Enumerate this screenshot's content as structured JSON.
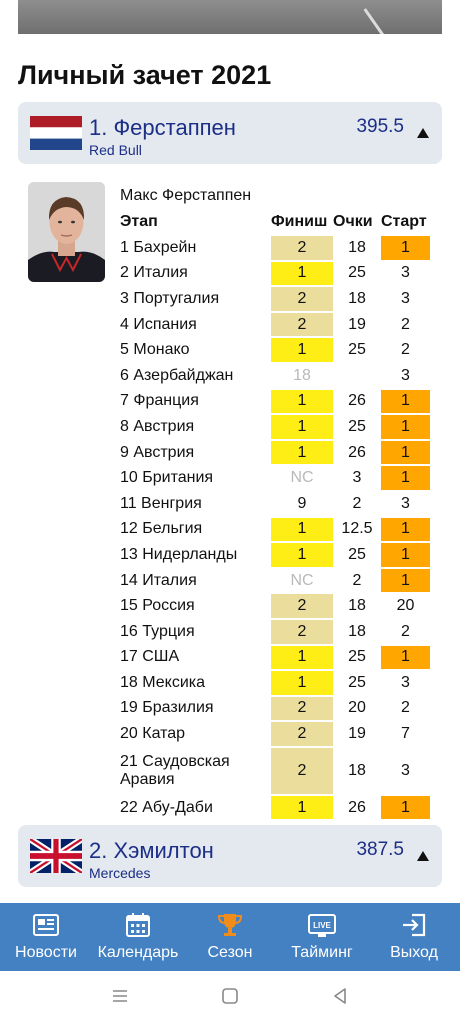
{
  "section_title": "Личный зачет 2021",
  "drivers": [
    {
      "name": "1. Ферстаппен",
      "team": "Red Bull",
      "points": "395.5",
      "flag": "netherlands"
    },
    {
      "name": "2. Хэмилтон",
      "team": "Mercedes",
      "points": "387.5",
      "flag": "uk"
    }
  ],
  "detail": {
    "full_name": "Макс Ферстаппен",
    "headers": {
      "stage": "Этап",
      "finish": "Финиш",
      "points": "Очки",
      "start": "Старт"
    },
    "rows": [
      {
        "stage": "1 Бахрейн",
        "finish": "2",
        "points": "18",
        "start": "1"
      },
      {
        "stage": "2 Италия",
        "finish": "1",
        "points": "25",
        "start": "3"
      },
      {
        "stage": "3 Португалия",
        "finish": "2",
        "points": "18",
        "start": "3"
      },
      {
        "stage": "4 Испания",
        "finish": "2",
        "points": "19",
        "start": "2"
      },
      {
        "stage": "5 Монако",
        "finish": "1",
        "points": "25",
        "start": "2"
      },
      {
        "stage": "6 Азербайджан",
        "finish": "18",
        "points": "",
        "start": "3"
      },
      {
        "stage": "7 Франция",
        "finish": "1",
        "points": "26",
        "start": "1"
      },
      {
        "stage": "8 Австрия",
        "finish": "1",
        "points": "25",
        "start": "1"
      },
      {
        "stage": "9 Австрия",
        "finish": "1",
        "points": "26",
        "start": "1"
      },
      {
        "stage": "10 Британия",
        "finish": "NC",
        "points": "3",
        "start": "1"
      },
      {
        "stage": "11 Венгрия",
        "finish": "9",
        "points": "2",
        "start": "3"
      },
      {
        "stage": "12 Бельгия",
        "finish": "1",
        "points": "12.5",
        "start": "1"
      },
      {
        "stage": "13 Нидерланды",
        "finish": "1",
        "points": "25",
        "start": "1"
      },
      {
        "stage": "14 Италия",
        "finish": "NC",
        "points": "2",
        "start": "1"
      },
      {
        "stage": "15 Россия",
        "finish": "2",
        "points": "18",
        "start": "20"
      },
      {
        "stage": "16 Турция",
        "finish": "2",
        "points": "18",
        "start": "2"
      },
      {
        "stage": "17 США",
        "finish": "1",
        "points": "25",
        "start": "1"
      },
      {
        "stage": "18 Мексика",
        "finish": "1",
        "points": "25",
        "start": "3"
      },
      {
        "stage": "19 Бразилия",
        "finish": "2",
        "points": "20",
        "start": "2"
      },
      {
        "stage": "20 Катар",
        "finish": "2",
        "points": "19",
        "start": "7"
      },
      {
        "stage": "21 Саудовская Аравия",
        "finish": "2",
        "points": "18",
        "start": "3"
      },
      {
        "stage": "22 Абу-Даби",
        "finish": "1",
        "points": "26",
        "start": "1"
      }
    ]
  },
  "nav": [
    {
      "label": "Новости",
      "icon": "news-icon"
    },
    {
      "label": "Календарь",
      "icon": "calendar-icon"
    },
    {
      "label": "Сезон",
      "icon": "trophy-icon"
    },
    {
      "label": "Тайминг",
      "icon": "live-icon"
    },
    {
      "label": "Выход",
      "icon": "exit-icon"
    }
  ],
  "live_badge": "LIVE",
  "colors": {
    "accent_text": "#1c2e86",
    "card_bg": "#e3e9ef",
    "first_place": "#ffee16",
    "second_place": "#ebdd9b",
    "pole_start": "#ffa600",
    "nav_bg": "#4381c2",
    "active_nav_icon": "#f08c1a"
  }
}
